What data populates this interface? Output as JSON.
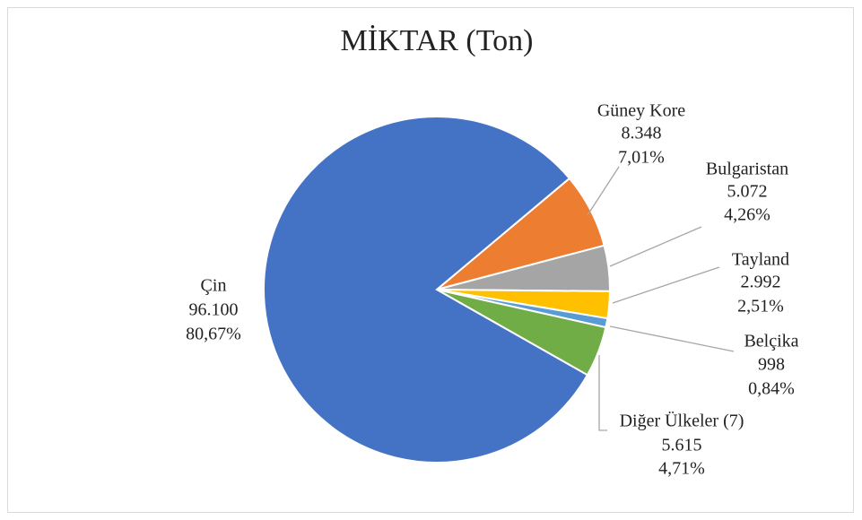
{
  "chart_data": {
    "type": "pie",
    "title": "MİKTAR (Ton)",
    "categories": [
      "Güney Kore",
      "Bulgaristan",
      "Tayland",
      "Belçika",
      "Diğer Ülkeler (7)",
      "Çin"
    ],
    "values": [
      8348,
      5072,
      2992,
      998,
      5615,
      96100
    ],
    "value_labels": [
      "8.348",
      "5.072",
      "2.992",
      "998",
      "5.615",
      "96.100"
    ],
    "percentages": [
      7.01,
      4.26,
      2.51,
      0.84,
      4.71,
      80.67
    ],
    "percentage_labels": [
      "7,01%",
      "4,26%",
      "2,51%",
      "0,84%",
      "4,71%",
      "80,67%"
    ],
    "colors": [
      "#ED7D31",
      "#A5A5A5",
      "#FFC000",
      "#5B9BD5",
      "#70AD47",
      "#4472C4"
    ]
  }
}
